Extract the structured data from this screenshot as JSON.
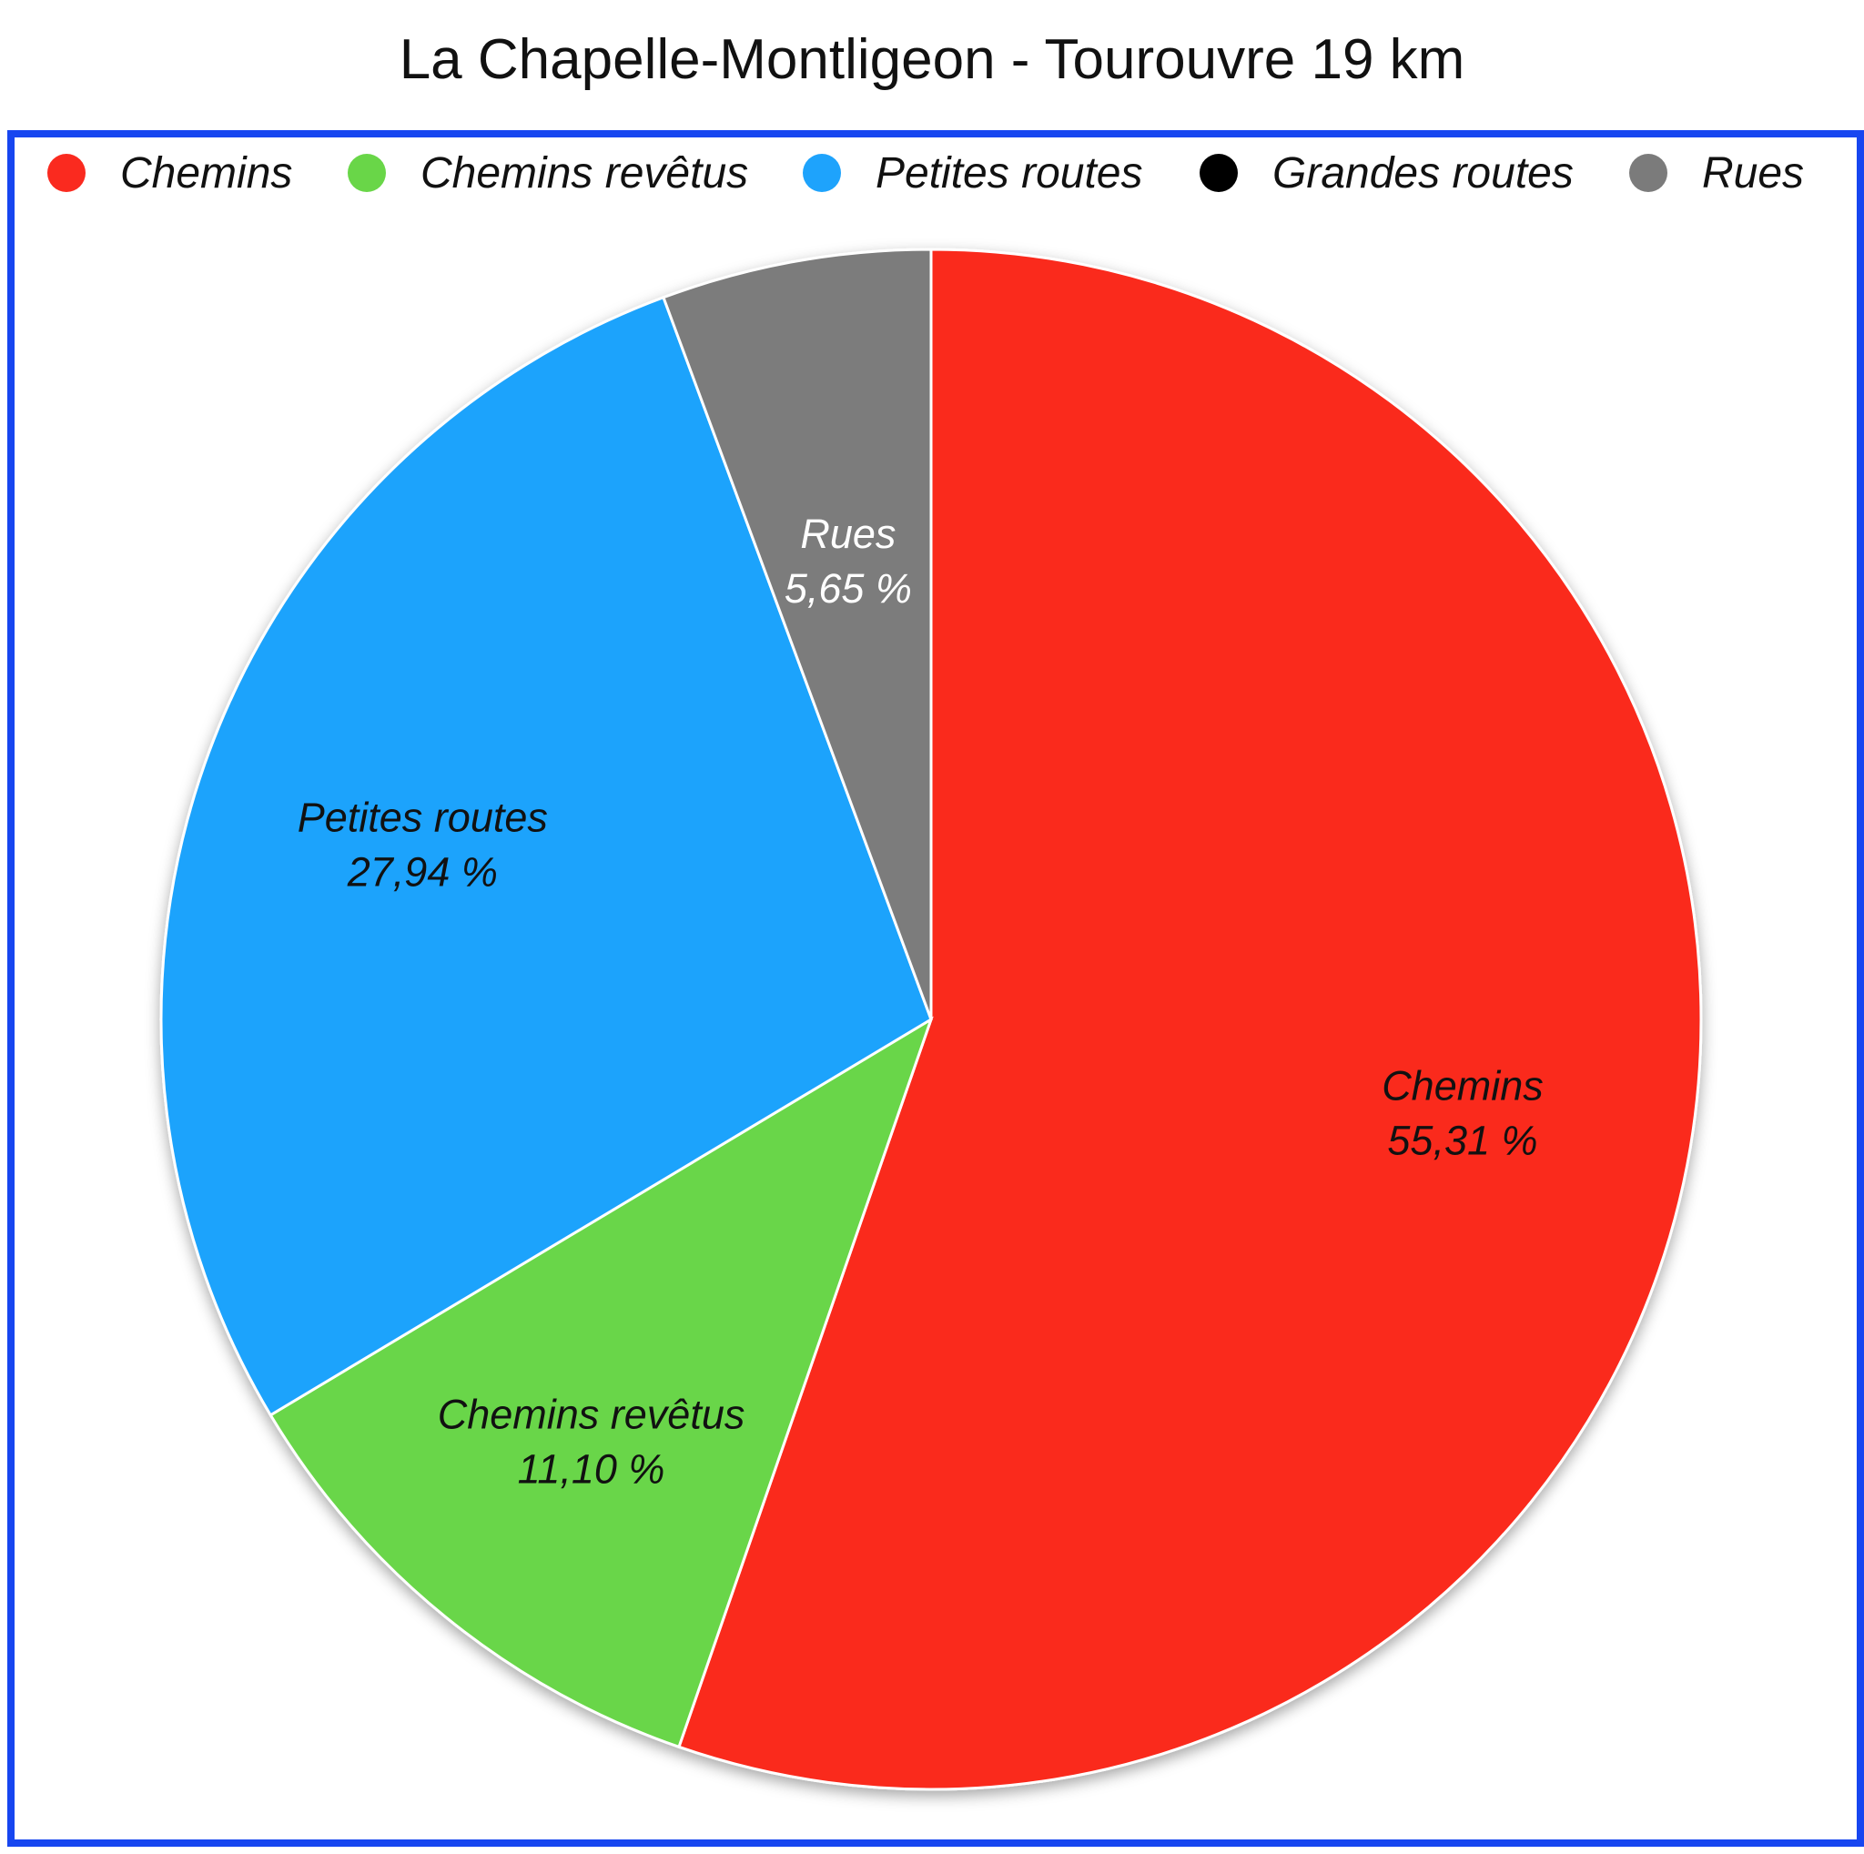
{
  "chart_data": {
    "type": "pie",
    "title": "La Chapelle-Montligeon - Tourouvre 19 km",
    "legend_position": "top",
    "slices": [
      {
        "name": "Chemins",
        "value": 55.31,
        "label": "55,31 %",
        "color": "#fa2a1f",
        "label_color": "#111111"
      },
      {
        "name": "Chemins revêtus",
        "value": 11.1,
        "label": "11,10 %",
        "color": "#69d648",
        "label_color": "#111111"
      },
      {
        "name": "Petites routes",
        "value": 27.94,
        "label": "27,94 %",
        "color": "#1ea3fc",
        "label_color": "#111111"
      },
      {
        "name": "Grandes routes",
        "value": 0,
        "label": "",
        "color": "#000000",
        "label_color": "#111111"
      },
      {
        "name": "Rues",
        "value": 5.65,
        "label": "5,65 %",
        "color": "#7b7b7b",
        "label_color": "#ffffff"
      }
    ]
  }
}
